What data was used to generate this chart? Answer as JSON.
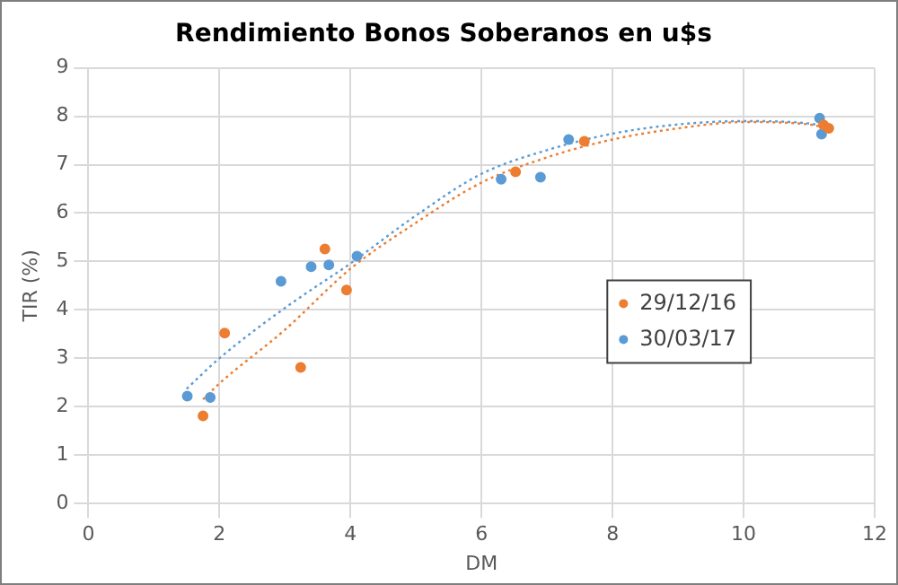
{
  "chart_data": {
    "type": "scatter",
    "title": "Rendimiento Bonos Soberanos en u$s",
    "xlabel": "DM",
    "ylabel": "TIR (%)",
    "xlim": [
      0,
      12
    ],
    "xticks": [
      0,
      2,
      4,
      6,
      8,
      10,
      12
    ],
    "ylim": [
      0,
      9
    ],
    "yticks": [
      0,
      1,
      2,
      3,
      4,
      5,
      6,
      7,
      8,
      9
    ],
    "grid": true,
    "legend": "right",
    "marker": "circle",
    "series": [
      {
        "name": "29/12/16",
        "color": "#ed7d31",
        "x": [
          1.75,
          2.08,
          3.24,
          3.61,
          3.94,
          6.52,
          7.57,
          11.22,
          11.3
        ],
        "values": [
          1.81,
          3.52,
          2.81,
          5.26,
          4.41,
          6.85,
          7.48,
          7.82,
          7.75
        ]
      },
      {
        "name": "30/03/17",
        "color": "#5b9bd5",
        "x": [
          1.51,
          1.86,
          2.94,
          3.4,
          3.67,
          4.1,
          6.3,
          6.9,
          7.33,
          11.16,
          11.19
        ],
        "values": [
          2.22,
          2.19,
          4.59,
          4.89,
          4.93,
          5.11,
          6.7,
          6.74,
          7.52,
          7.96,
          7.63
        ]
      },
      {
        "type": "line",
        "line_style": "dotted",
        "marker": "none",
        "color": "#ed7d31",
        "x": [
          1.75,
          2,
          3,
          4,
          5,
          6,
          7,
          8,
          9,
          10,
          11,
          11.3
        ],
        "values": [
          2.15,
          2.48,
          3.59,
          4.85,
          5.8,
          6.63,
          7.15,
          7.52,
          7.75,
          7.88,
          7.83,
          7.75
        ]
      },
      {
        "type": "line",
        "line_style": "dotted",
        "marker": "none",
        "color": "#5b9bd5",
        "x": [
          1.5,
          2,
          3,
          4,
          5,
          6,
          7,
          8,
          9,
          10,
          11,
          11.2
        ],
        "values": [
          2.37,
          3.0,
          4.04,
          4.96,
          5.95,
          6.81,
          7.3,
          7.64,
          7.83,
          7.9,
          7.85,
          7.8
        ]
      }
    ]
  }
}
